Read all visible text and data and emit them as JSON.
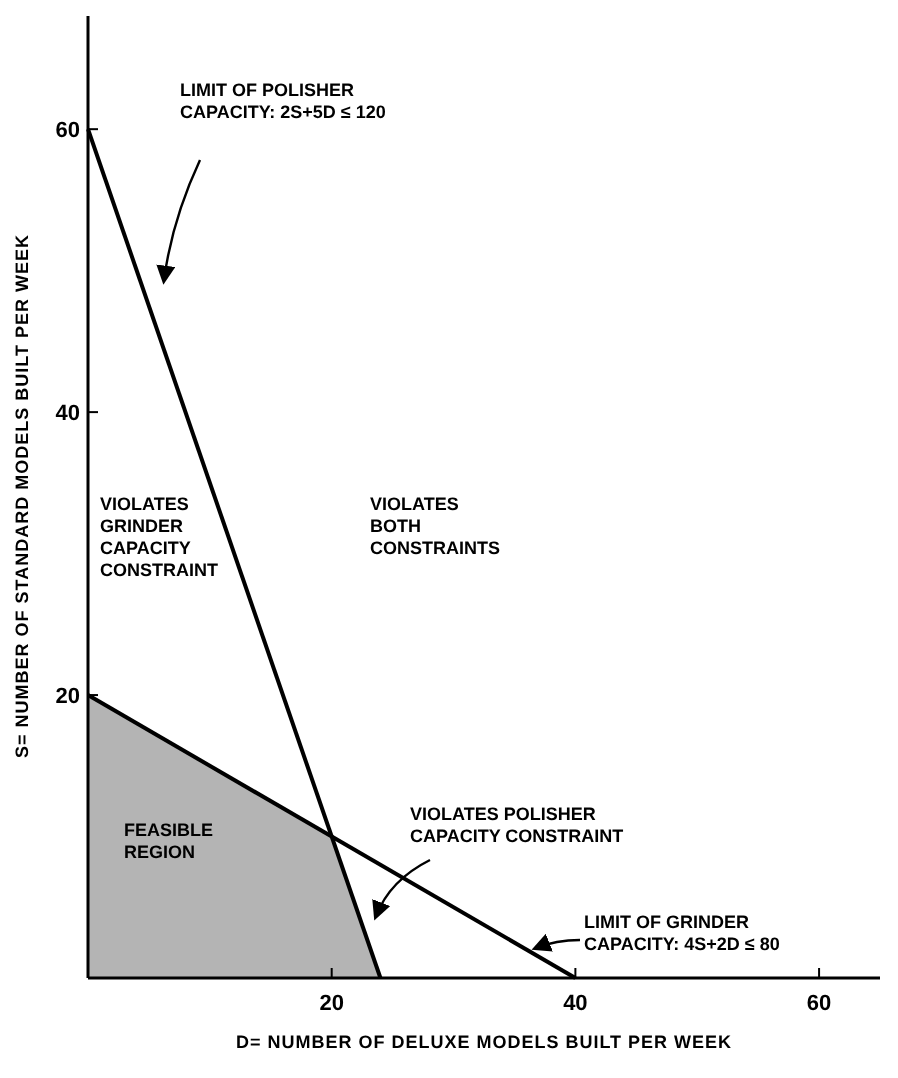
{
  "chart_data": {
    "type": "line",
    "xlabel": "D= NUMBER OF DELUXE MODELS BUILT PER WEEK",
    "ylabel": "S= NUMBER OF STANDARD MODELS BUILT PER WEEK",
    "xlim": [
      0,
      65
    ],
    "ylim": [
      0,
      68
    ],
    "xticks": [
      20,
      40,
      60
    ],
    "yticks": [
      20,
      40,
      60
    ],
    "series": [
      {
        "type": "area",
        "color": "#b4b4b4",
        "x": [
          0,
          20,
          24
        ],
        "values": [
          20,
          10,
          0
        ]
      },
      {
        "color": "#000000",
        "x": [
          0,
          24
        ],
        "values": [
          60,
          0
        ]
      },
      {
        "color": "#000000",
        "x": [
          0,
          40
        ],
        "values": [
          20,
          0
        ]
      }
    ],
    "annotations": [
      "LIMIT OF POLISHER\nCAPACITY:  2S+5D ≤ 120",
      "VIOLATES\nGRINDER\nCAPACITY\nCONSTRAINT",
      "VIOLATES\nBOTH\nCONSTRAINTS",
      "FEASIBLE\nREGION",
      "VIOLATES POLISHER\nCAPACITY CONSTRAINT",
      "LIMIT OF GRINDER\nCAPACITY:  4S+2D ≤ 80"
    ]
  }
}
